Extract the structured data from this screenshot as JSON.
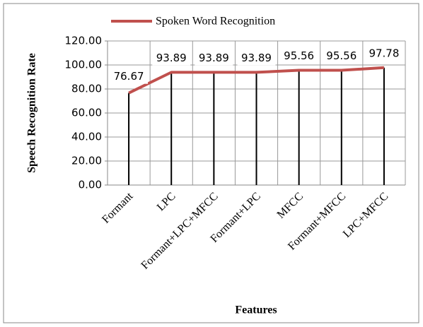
{
  "chart_data": {
    "type": "line",
    "series": [
      {
        "name": "Spoken Word Recognition",
        "color": "#c0504d",
        "values": [
          76.67,
          93.89,
          93.89,
          93.89,
          95.56,
          95.56,
          97.78
        ]
      }
    ],
    "categories": [
      "Formant",
      "LPC",
      "Formant+LPC+MFCC",
      "Formant+LPC",
      "MFCC",
      "Formant+MFCC",
      "LPC+MFCC"
    ],
    "ylim": [
      0,
      120
    ],
    "yticks": [
      {
        "value": 0,
        "label": "0.00"
      },
      {
        "value": 20,
        "label": "20.00"
      },
      {
        "value": 40,
        "label": "40.00"
      },
      {
        "value": 60,
        "label": "60.00"
      },
      {
        "value": 80,
        "label": "80.00"
      },
      {
        "value": 100,
        "label": "100.00"
      },
      {
        "value": 120,
        "label": "120.00"
      }
    ],
    "xlabel": "Features",
    "ylabel": "Speech Recognition Rate",
    "grid": true,
    "legend": "top"
  }
}
